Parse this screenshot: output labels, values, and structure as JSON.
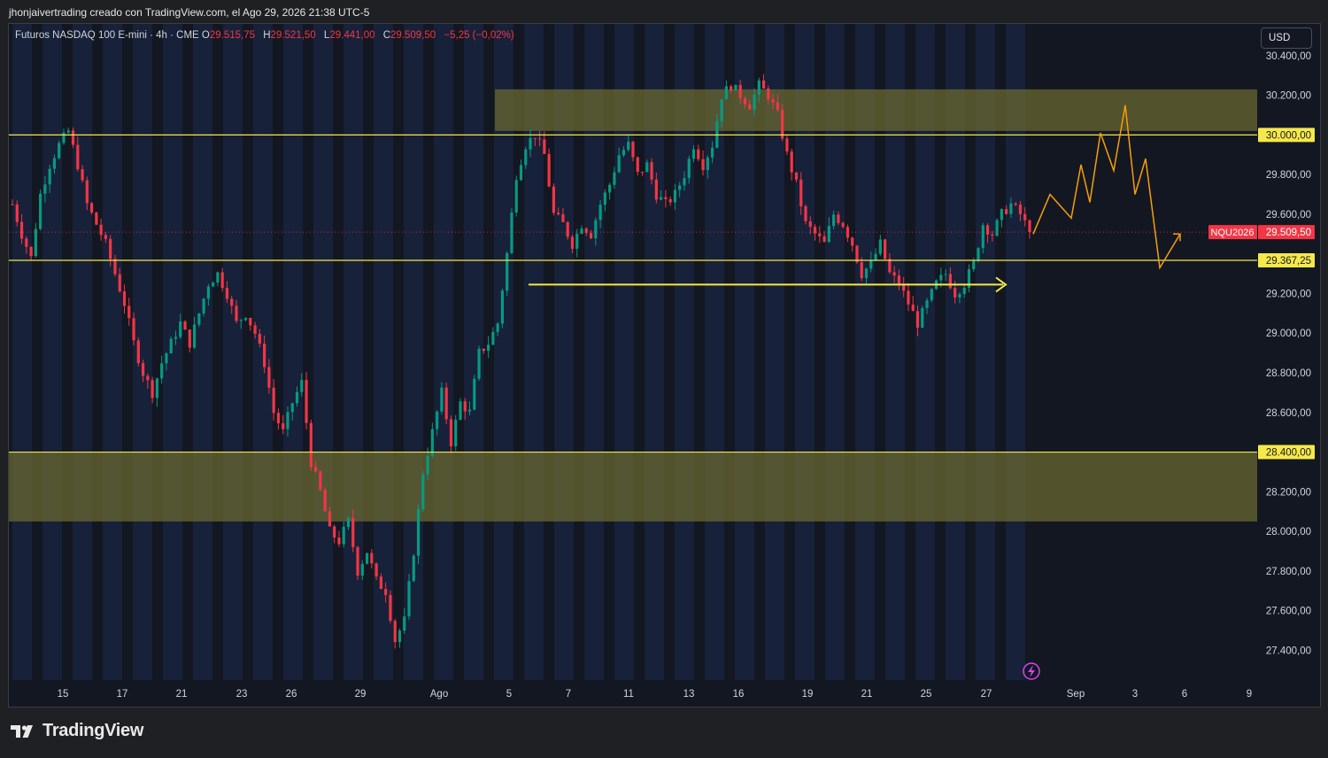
{
  "attribution": "jhonjaivertrading creado con TradingView.com, el Ago 29, 2026 21:38 UTC-5",
  "header": {
    "title": "Futuros NASDAQ 100 E-mini · 4h · CME",
    "o_label": "O",
    "o_value": "29.515,75",
    "h_label": "H",
    "h_value": "29.521,50",
    "l_label": "L",
    "l_value": "29.441,00",
    "c_label": "C",
    "c_value": "29.509,50",
    "change": "−5,25 (−0,02%)"
  },
  "currency_label": "USD",
  "logo_text": "TradingView",
  "colors": {
    "up": "#089981",
    "down": "#f23645",
    "zone": "#6b6a30",
    "level": "#f5e84a",
    "projection": "#f59e0b",
    "arrow": "#f5e84a",
    "price_badge": "#f23645",
    "session_band": "#1b2a4d"
  },
  "chart_data": {
    "type": "candlestick",
    "symbol": "NQU2026",
    "timeframe": "4h",
    "ylim": [
      27250,
      30560
    ],
    "y_ticks": [
      "27.400,00",
      "27.600,00",
      "27.800,00",
      "28.000,00",
      "28.200,00",
      "28.600,00",
      "28.800,00",
      "29.000,00",
      "29.200,00",
      "29.600,00",
      "29.800,00",
      "30.200,00",
      "30.400,00"
    ],
    "y_tick_values": [
      27400,
      27600,
      27800,
      28000,
      28200,
      28600,
      28800,
      29000,
      29200,
      29600,
      29800,
      30200,
      30400
    ],
    "x_ticks": [
      "15",
      "17",
      "21",
      "23",
      "26",
      "29",
      "Ago",
      "5",
      "7",
      "11",
      "13",
      "16",
      "19",
      "21",
      "25",
      "27",
      "Sep",
      "3",
      "6",
      "9"
    ],
    "price_path": [
      [
        0,
        29650
      ],
      [
        2,
        29500
      ],
      [
        4,
        29380
      ],
      [
        6,
        29700
      ],
      [
        8,
        29850
      ],
      [
        10,
        29950
      ],
      [
        12,
        30020
      ],
      [
        14,
        29850
      ],
      [
        16,
        29650
      ],
      [
        18,
        29550
      ],
      [
        20,
        29450
      ],
      [
        22,
        29300
      ],
      [
        24,
        29150
      ],
      [
        26,
        28950
      ],
      [
        28,
        28800
      ],
      [
        30,
        28700
      ],
      [
        32,
        28850
      ],
      [
        34,
        28950
      ],
      [
        36,
        29050
      ],
      [
        38,
        28950
      ],
      [
        40,
        29100
      ],
      [
        42,
        29250
      ],
      [
        44,
        29300
      ],
      [
        46,
        29200
      ],
      [
        48,
        29050
      ],
      [
        50,
        29100
      ],
      [
        52,
        29000
      ],
      [
        54,
        28850
      ],
      [
        56,
        28600
      ],
      [
        58,
        28500
      ],
      [
        60,
        28650
      ],
      [
        62,
        28750
      ],
      [
        64,
        28350
      ],
      [
        66,
        28200
      ],
      [
        68,
        28000
      ],
      [
        70,
        27950
      ],
      [
        72,
        28050
      ],
      [
        74,
        27800
      ],
      [
        76,
        27900
      ],
      [
        78,
        27750
      ],
      [
        80,
        27700
      ],
      [
        82,
        27450
      ],
      [
        84,
        27550
      ],
      [
        86,
        27900
      ],
      [
        88,
        28300
      ],
      [
        90,
        28500
      ],
      [
        92,
        28700
      ],
      [
        94,
        28450
      ],
      [
        96,
        28650
      ],
      [
        98,
        28600
      ],
      [
        100,
        28900
      ],
      [
        102,
        28950
      ],
      [
        104,
        29050
      ],
      [
        106,
        29400
      ],
      [
        108,
        29800
      ],
      [
        110,
        29950
      ],
      [
        112,
        30000
      ],
      [
        114,
        29900
      ],
      [
        116,
        29600
      ],
      [
        118,
        29550
      ],
      [
        120,
        29450
      ],
      [
        122,
        29550
      ],
      [
        124,
        29500
      ],
      [
        126,
        29650
      ],
      [
        128,
        29750
      ],
      [
        130,
        29900
      ],
      [
        132,
        29950
      ],
      [
        134,
        29800
      ],
      [
        136,
        29850
      ],
      [
        138,
        29700
      ],
      [
        140,
        29650
      ],
      [
        142,
        29700
      ],
      [
        144,
        29800
      ],
      [
        146,
        29950
      ],
      [
        148,
        29850
      ],
      [
        150,
        29950
      ],
      [
        152,
        30200
      ],
      [
        154,
        30250
      ],
      [
        156,
        30200
      ],
      [
        158,
        30150
      ],
      [
        160,
        30250
      ],
      [
        162,
        30200
      ],
      [
        164,
        30100
      ],
      [
        166,
        29900
      ],
      [
        168,
        29750
      ],
      [
        170,
        29550
      ],
      [
        172,
        29500
      ],
      [
        174,
        29450
      ],
      [
        176,
        29600
      ],
      [
        178,
        29550
      ],
      [
        180,
        29450
      ],
      [
        182,
        29300
      ],
      [
        184,
        29350
      ],
      [
        186,
        29450
      ],
      [
        188,
        29300
      ],
      [
        190,
        29250
      ],
      [
        192,
        29150
      ],
      [
        194,
        29050
      ],
      [
        196,
        29150
      ],
      [
        198,
        29250
      ],
      [
        200,
        29300
      ],
      [
        202,
        29200
      ],
      [
        204,
        29250
      ],
      [
        206,
        29350
      ],
      [
        208,
        29550
      ],
      [
        210,
        29500
      ],
      [
        212,
        29600
      ],
      [
        214,
        29650
      ],
      [
        216,
        29600
      ],
      [
        218,
        29509.5
      ]
    ],
    "levels": [
      {
        "price": 30000,
        "label": "30.000,00"
      },
      {
        "price": 29367.25,
        "label": "29.367,25"
      },
      {
        "price": 28400,
        "label": "28.400,00"
      }
    ],
    "zones": [
      {
        "from": 30020,
        "to": 30230
      },
      {
        "from": 28050,
        "to": 28400
      }
    ],
    "current_price": 29509.5,
    "current_price_label": "29.509,50",
    "support_arrow_price": 29245,
    "projection": [
      [
        0,
        29500
      ],
      [
        1,
        29700
      ],
      [
        2,
        29580
      ],
      [
        3,
        29850
      ],
      [
        4,
        29660
      ],
      [
        5,
        30010
      ],
      [
        6,
        29820
      ],
      [
        7,
        30150
      ],
      [
        8,
        29700
      ],
      [
        9,
        29880
      ],
      [
        10,
        29330
      ],
      [
        11,
        29500
      ]
    ]
  }
}
